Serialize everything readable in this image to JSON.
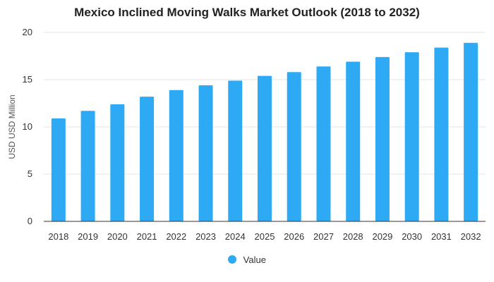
{
  "chart_data": {
    "type": "bar",
    "title": "Mexico Inclined Moving Walks Market Outlook (2018 to 2032)",
    "xlabel": "",
    "ylabel": "USD USD Million",
    "categories": [
      "2018",
      "2019",
      "2020",
      "2021",
      "2022",
      "2023",
      "2024",
      "2025",
      "2026",
      "2027",
      "2028",
      "2029",
      "2030",
      "2031",
      "2032"
    ],
    "series": [
      {
        "name": "Value",
        "values": [
          10.9,
          11.7,
          12.4,
          13.2,
          13.9,
          14.4,
          14.9,
          15.4,
          15.8,
          16.4,
          16.9,
          17.4,
          17.9,
          18.4,
          18.9
        ]
      }
    ],
    "ylim": [
      0,
      20
    ],
    "yticks": [
      0,
      5,
      10,
      15,
      20
    ],
    "grid": true,
    "legend_position": "bottom",
    "colors": {
      "bar": "#2eaaf5",
      "grid": "#e6e6e6",
      "axis": "#333333"
    }
  }
}
